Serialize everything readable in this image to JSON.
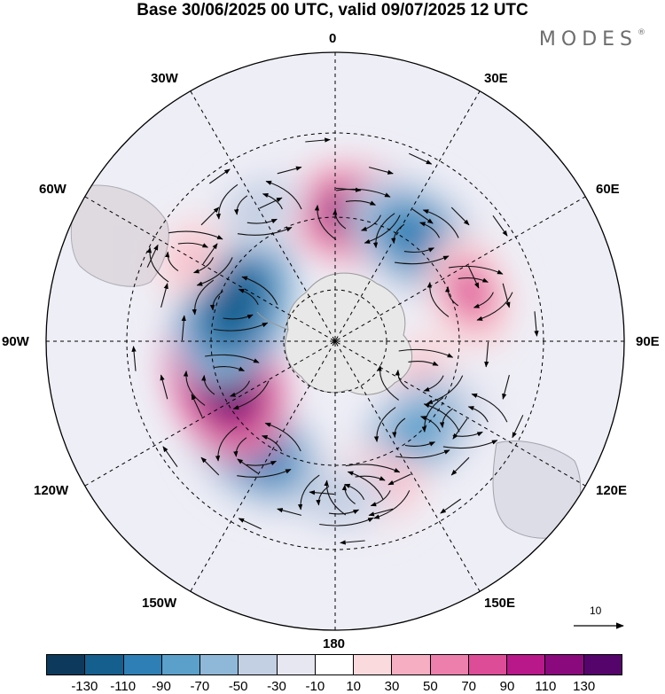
{
  "title": "Base 30/06/2025 00 UTC, valid 09/07/2025 12 UTC",
  "brand": "MODES",
  "brand_mark": "®",
  "longitude_labels": {
    "lon_0": "0",
    "lon_30e": "30E",
    "lon_60e": "60E",
    "lon_90e": "90E",
    "lon_120e": "120E",
    "lon_150e": "150E",
    "lon_180": "180",
    "lon_150w": "150W",
    "lon_120w": "120W",
    "lon_90w": "90W",
    "lon_60w": "60W",
    "lon_30w": "30W"
  },
  "reference_vector": {
    "label": "10"
  },
  "colorbar": {
    "colors": [
      "#0d3a5c",
      "#155f8f",
      "#2e7fb5",
      "#5b9fcb",
      "#8fb8d8",
      "#c3cfe3",
      "#e7e7f2",
      "#ffffff",
      "#fadadd",
      "#f5aec2",
      "#ec7fab",
      "#dd4c97",
      "#b8188a",
      "#8a0a7d",
      "#55046b"
    ],
    "ticks": [
      "-130",
      "-110",
      "-90",
      "-70",
      "-50",
      "-30",
      "-10",
      "10",
      "30",
      "50",
      "70",
      "90",
      "110",
      "130"
    ]
  },
  "anomaly_centers": [
    {
      "lon": 10,
      "lat": -48,
      "value": 110
    },
    {
      "lon": 38,
      "lat": -47,
      "value": -110
    },
    {
      "lon": 70,
      "lat": -43,
      "value": 70
    },
    {
      "lon": 112,
      "lat": -60,
      "value": 30
    },
    {
      "lon": 122,
      "lat": -40,
      "value": -30
    },
    {
      "lon": 138,
      "lat": -50,
      "value": -90
    },
    {
      "lon": 168,
      "lat": -40,
      "value": 70
    },
    {
      "lon": 178,
      "lat": -38,
      "value": -50
    },
    {
      "lon": 215,
      "lat": -46,
      "value": -110
    },
    {
      "lon": 250,
      "lat": -52,
      "value": 130
    },
    {
      "lon": 290,
      "lat": -55,
      "value": -130
    },
    {
      "lon": 330,
      "lat": -40,
      "value": -50
    },
    {
      "lon": 300,
      "lat": -35,
      "value": 30
    }
  ]
}
